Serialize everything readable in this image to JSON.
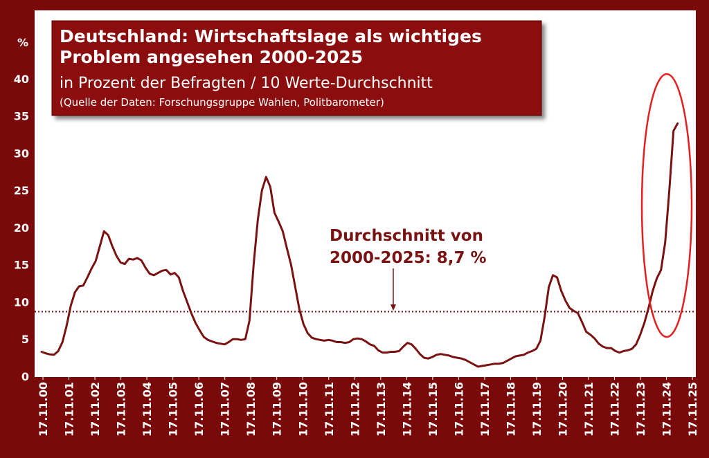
{
  "chart_data": {
    "type": "line",
    "title": [
      "Deutschland: Wirtschaftslage als wichtiges",
      "Problem angesehen 2000-2025"
    ],
    "subtitle": "in Prozent der Befragten / 10 Werte-Durchschnitt",
    "source": "(Quelle der Daten: Forschungsgruppe Wahlen, Politbarometer)",
    "y_label": "%",
    "annotation": [
      "Durchschnitt von",
      "2000-2025: 8,7 %"
    ],
    "average": 8.7,
    "color": "#7a1212",
    "xlim": [
      2000.56,
      2026.01
    ],
    "ylim": [
      0,
      49.2
    ],
    "yticks": [
      0,
      5,
      10,
      15,
      20,
      25,
      30,
      35,
      40
    ],
    "xticks": [
      {
        "value": 2000.88,
        "label": "17.11.00"
      },
      {
        "value": 2001.88,
        "label": "17.11.01"
      },
      {
        "value": 2002.88,
        "label": "17.11.02"
      },
      {
        "value": 2003.88,
        "label": "17.11.03"
      },
      {
        "value": 2004.88,
        "label": "17.11.04"
      },
      {
        "value": 2005.88,
        "label": "17.11.05"
      },
      {
        "value": 2006.88,
        "label": "17.11.06"
      },
      {
        "value": 2007.88,
        "label": "17.11.07"
      },
      {
        "value": 2008.88,
        "label": "17.11.08"
      },
      {
        "value": 2009.88,
        "label": "17.11.09"
      },
      {
        "value": 2010.88,
        "label": "17.11.10"
      },
      {
        "value": 2011.88,
        "label": "17.11.11"
      },
      {
        "value": 2012.88,
        "label": "17.11.12"
      },
      {
        "value": 2013.88,
        "label": "17.11.13"
      },
      {
        "value": 2014.88,
        "label": "17.11.14"
      },
      {
        "value": 2015.88,
        "label": "17.11.15"
      },
      {
        "value": 2016.88,
        "label": "17.11.16"
      },
      {
        "value": 2017.88,
        "label": "17.11.17"
      },
      {
        "value": 2018.88,
        "label": "17.11.18"
      },
      {
        "value": 2019.88,
        "label": "17.11.19"
      },
      {
        "value": 2020.88,
        "label": "17.11.20"
      },
      {
        "value": 2021.88,
        "label": "17.11.21"
      },
      {
        "value": 2022.88,
        "label": "17.11.22"
      },
      {
        "value": 2023.88,
        "label": "17.11.23"
      },
      {
        "value": 2024.88,
        "label": "17.11.24"
      },
      {
        "value": 2025.88,
        "label": "17.11.25"
      }
    ],
    "x": [
      2000.83,
      2000.99,
      2001.15,
      2001.31,
      2001.47,
      2001.63,
      2001.79,
      2001.95,
      2002.11,
      2002.27,
      2002.43,
      2002.59,
      2002.75,
      2002.91,
      2003.07,
      2003.23,
      2003.39,
      2003.55,
      2003.71,
      2003.87,
      2004.03,
      2004.19,
      2004.35,
      2004.51,
      2004.67,
      2004.83,
      2004.99,
      2005.15,
      2005.31,
      2005.47,
      2005.63,
      2005.79,
      2005.95,
      2006.11,
      2006.27,
      2006.43,
      2006.59,
      2006.75,
      2006.91,
      2007.07,
      2007.23,
      2007.39,
      2007.55,
      2007.71,
      2007.87,
      2008.03,
      2008.19,
      2008.35,
      2008.51,
      2008.67,
      2008.83,
      2008.99,
      2009.15,
      2009.31,
      2009.47,
      2009.63,
      2009.79,
      2009.95,
      2010.11,
      2010.27,
      2010.43,
      2010.59,
      2010.75,
      2010.91,
      2011.07,
      2011.23,
      2011.39,
      2011.55,
      2011.71,
      2011.87,
      2012.03,
      2012.19,
      2012.35,
      2012.51,
      2012.67,
      2012.83,
      2012.99,
      2013.15,
      2013.31,
      2013.47,
      2013.63,
      2013.79,
      2013.95,
      2014.11,
      2014.27,
      2014.43,
      2014.59,
      2014.75,
      2014.91,
      2015.07,
      2015.23,
      2015.39,
      2015.55,
      2015.71,
      2015.87,
      2016.03,
      2016.19,
      2016.35,
      2016.51,
      2016.67,
      2016.83,
      2016.99,
      2017.15,
      2017.31,
      2017.47,
      2017.63,
      2017.79,
      2017.95,
      2018.11,
      2018.27,
      2018.43,
      2018.59,
      2018.75,
      2018.91,
      2019.07,
      2019.23,
      2019.39,
      2019.55,
      2019.71,
      2019.87,
      2020.03,
      2020.19,
      2020.35,
      2020.51,
      2020.67,
      2020.83,
      2020.99,
      2021.15,
      2021.31,
      2021.47,
      2021.63,
      2021.79,
      2021.95,
      2022.11,
      2022.27,
      2022.43,
      2022.59,
      2022.75,
      2022.91,
      2023.07,
      2023.23,
      2023.39,
      2023.55,
      2023.71,
      2023.87,
      2024.03,
      2024.19,
      2024.35,
      2024.51,
      2024.67,
      2024.83,
      2024.99,
      2025.15,
      2025.31
    ],
    "values": [
      3.3,
      3.1,
      2.95,
      2.9,
      3.4,
      4.6,
      6.8,
      9.5,
      11.3,
      12.1,
      12.2,
      13.3,
      14.5,
      15.5,
      17.5,
      19.5,
      19,
      17.5,
      16.2,
      15.3,
      15.1,
      15.8,
      15.7,
      15.9,
      15.6,
      14.6,
      13.8,
      13.6,
      13.9,
      14.2,
      14.3,
      13.7,
      13.9,
      13.3,
      11.5,
      10,
      8.5,
      7.2,
      6.2,
      5.3,
      4.9,
      4.7,
      4.5,
      4.4,
      4.3,
      4.6,
      5.0,
      5.0,
      4.9,
      5.0,
      7.5,
      15,
      21,
      25,
      26.8,
      25.5,
      22,
      20.8,
      19.5,
      17.2,
      15,
      12,
      9,
      7,
      5.8,
      5.2,
      5.0,
      4.9,
      4.8,
      4.9,
      4.8,
      4.6,
      4.6,
      4.5,
      4.6,
      5.0,
      5.1,
      5.0,
      4.7,
      4.3,
      4.1,
      3.5,
      3.2,
      3.2,
      3.3,
      3.3,
      3.4,
      4.0,
      4.5,
      4.3,
      3.7,
      3.0,
      2.5,
      2.4,
      2.6,
      2.9,
      3.0,
      2.9,
      2.8,
      2.6,
      2.5,
      2.4,
      2.2,
      1.9,
      1.6,
      1.3,
      1.4,
      1.5,
      1.6,
      1.7,
      1.7,
      1.8,
      2.1,
      2.4,
      2.7,
      2.8,
      2.9,
      3.2,
      3.4,
      3.7,
      4.8,
      8,
      12,
      13.6,
      13.3,
      11.5,
      10.2,
      9.2,
      8.8,
      8.5,
      7.3,
      6.0,
      5.6,
      5.1,
      4.4,
      4.0,
      3.8,
      3.8,
      3.4,
      3.2,
      3.4,
      3.5,
      3.7,
      4.3,
      5.6,
      7.2,
      9.2,
      11.5,
      13.2,
      14.3,
      18,
      25,
      33,
      34
    ]
  }
}
